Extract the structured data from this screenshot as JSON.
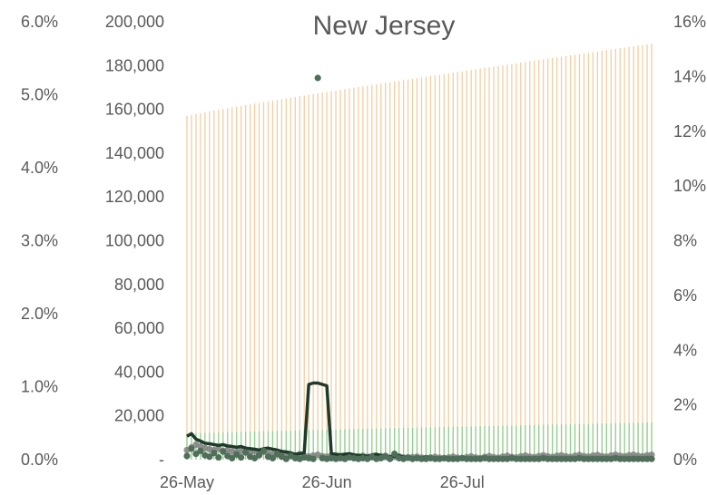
{
  "chart_data": {
    "type": "bar",
    "title": "New Jersey",
    "x_ticks": [
      "26-May",
      "26-Jun",
      "26-Jul"
    ],
    "left_axis": {
      "labels": [
        "0.0%",
        "1.0%",
        "2.0%",
        "3.0%",
        "4.0%",
        "5.0%",
        "6.0%"
      ],
      "range": [
        0,
        0.06
      ]
    },
    "middle_axis": {
      "labels": [
        "-",
        "20,000",
        "40,000",
        "60,000",
        "80,000",
        "100,000",
        "120,000",
        "140,000",
        "160,000",
        "180,000",
        "200,000"
      ],
      "range": [
        0,
        200000
      ]
    },
    "right_axis": {
      "labels": [
        "0%",
        "2%",
        "4%",
        "6%",
        "8%",
        "10%",
        "12%",
        "14%",
        "16%"
      ],
      "range": [
        0,
        0.16
      ]
    },
    "days": 104,
    "start_date": "2020-05-26",
    "series": [
      {
        "type": "bar",
        "color": "#F4CDA0",
        "axis": "middle",
        "first": 157000,
        "last": 190000
      },
      {
        "type": "bar",
        "color": "#8FD08F",
        "axis": "middle",
        "first": 12000,
        "last": 17000
      },
      {
        "type": "line",
        "color": "#1F3A2B",
        "axis": "right",
        "values": [
          0.0085,
          0.0095,
          0.0075,
          0.0068,
          0.006,
          0.0058,
          0.0055,
          0.0052,
          0.0055,
          0.005,
          0.0048,
          0.0045,
          0.0048,
          0.0042,
          0.004,
          0.0038,
          0.0035,
          0.004,
          0.0042,
          0.0038,
          0.0035,
          0.003,
          0.0028,
          0.0025,
          0.002,
          0.0022,
          0.0025,
          0.0275,
          0.028,
          0.028,
          0.0275,
          0.027,
          0.0022,
          0.002,
          0.0018,
          0.002,
          0.0022,
          0.0018,
          0.0015,
          0.0015,
          0.0012,
          0.0018,
          0.002,
          0.0015,
          0.0012,
          0.001,
          0.0012,
          0.0015,
          0.001,
          0.0008,
          0.0008,
          0.0005,
          0.0008,
          0.001,
          0.0008,
          0.0005,
          0.0004,
          0.0005,
          0.0005,
          0.0005,
          0.0004,
          0.0005,
          0.0005,
          0.0004,
          0.0005,
          0.0004,
          0.0004,
          0.0005,
          0.0005,
          0.0004,
          0.0004,
          0.0005,
          0.0004,
          0.0005,
          0.0005,
          0.0005,
          0.0004,
          0.0005,
          0.0005,
          0.0005,
          0.0004,
          0.0005,
          0.0005,
          0.0005,
          0.0004,
          0.0005,
          0.0005,
          0.0005,
          0.0005,
          0.0005,
          0.0005,
          0.0004,
          0.0005,
          0.0005,
          0.0005,
          0.0004,
          0.0005,
          0.0005,
          0.0005,
          0.0005,
          0.0004,
          0.0005,
          0.0005,
          0.0006
        ]
      },
      {
        "type": "scatter",
        "color": "#808080",
        "axis": "right",
        "values": [
          0.0035,
          0.0045,
          0.0055,
          0.0048,
          0.0042,
          0.0038,
          0.0035,
          0.004,
          0.0032,
          0.0036,
          0.003,
          0.0028,
          0.0032,
          0.0026,
          0.0025,
          0.003,
          0.0022,
          0.0028,
          0.0024,
          0.002,
          0.0018,
          0.0022,
          0.0016,
          0.0018,
          0.0015,
          0.002,
          0.0014,
          0.0012,
          0.0015,
          0.0018,
          0.0013,
          0.0011,
          0.0015,
          0.0012,
          0.001,
          0.0014,
          0.0011,
          0.0009,
          0.0012,
          0.0014,
          0.001,
          0.0008,
          0.0011,
          0.0013,
          0.0009,
          0.0008,
          0.001,
          0.0012,
          0.0008,
          0.0006,
          0.0009,
          0.0011,
          0.0007,
          0.0006,
          0.0008,
          0.001,
          0.0007,
          0.0005,
          0.0008,
          0.0011,
          0.0007,
          0.0006,
          0.0009,
          0.0012,
          0.0008,
          0.0006,
          0.001,
          0.0013,
          0.0009,
          0.0007,
          0.0011,
          0.0014,
          0.001,
          0.0008,
          0.0012,
          0.0015,
          0.0011,
          0.0009,
          0.0013,
          0.0016,
          0.0012,
          0.001,
          0.0014,
          0.0016,
          0.0012,
          0.001,
          0.0014,
          0.0017,
          0.0013,
          0.0011,
          0.0015,
          0.0017,
          0.0013,
          0.0011,
          0.0015,
          0.0018,
          0.0014,
          0.0012,
          0.0016,
          0.0018,
          0.0014,
          0.0012,
          0.0016,
          0.0018
        ]
      },
      {
        "type": "scatter",
        "color": "#4F6F5A",
        "axis": "left",
        "values": [
          0.0005,
          0.0015,
          0.0008,
          0.0012,
          0.0006,
          0.0004,
          0.0009,
          0.0003,
          0.0011,
          0.0005,
          0.0002,
          0.0007,
          0.0003,
          0.001,
          0.0004,
          0.0002,
          0.0006,
          0.0012,
          0.0004,
          0.0002,
          0.0008,
          0.0004,
          0.0001,
          0.0005,
          0.0002,
          0.0001,
          0.0003,
          0.0002,
          0.0001,
          0.0523,
          0.0002,
          0.0001,
          0.0002,
          0.0001,
          0.0002,
          0.0001,
          0.0003,
          0.0002,
          0.0001,
          0.0002,
          0.0001,
          0.0004,
          0.0001,
          0.0002,
          0.0005,
          0.0001,
          0.0008,
          0.0002,
          0.0001,
          0.0003,
          0.0001,
          0.0002,
          0.0001,
          0.0001,
          0.0002,
          0.0001,
          0.0001,
          0.0002,
          0.0001,
          0.0001,
          0.0001,
          0.0002,
          0.0001,
          0.0001,
          0.0001,
          0.0001,
          0.0002,
          0.0001,
          0.0001,
          0.0001,
          0.0001,
          0.0001,
          0.0002,
          0.0001,
          0.0001,
          0.0001,
          0.0001,
          0.0001,
          0.0001,
          0.0002,
          0.0001,
          0.0001,
          0.0001,
          0.0001,
          0.0001,
          0.0001,
          0.0001,
          0.0002,
          0.0001,
          0.0001,
          0.0001,
          0.0001,
          0.0001,
          0.0001,
          0.0001,
          0.0002,
          0.0001,
          0.0001,
          0.0001,
          0.0001,
          0.0001,
          0.0001,
          0.0001,
          0.0001
        ]
      }
    ]
  }
}
